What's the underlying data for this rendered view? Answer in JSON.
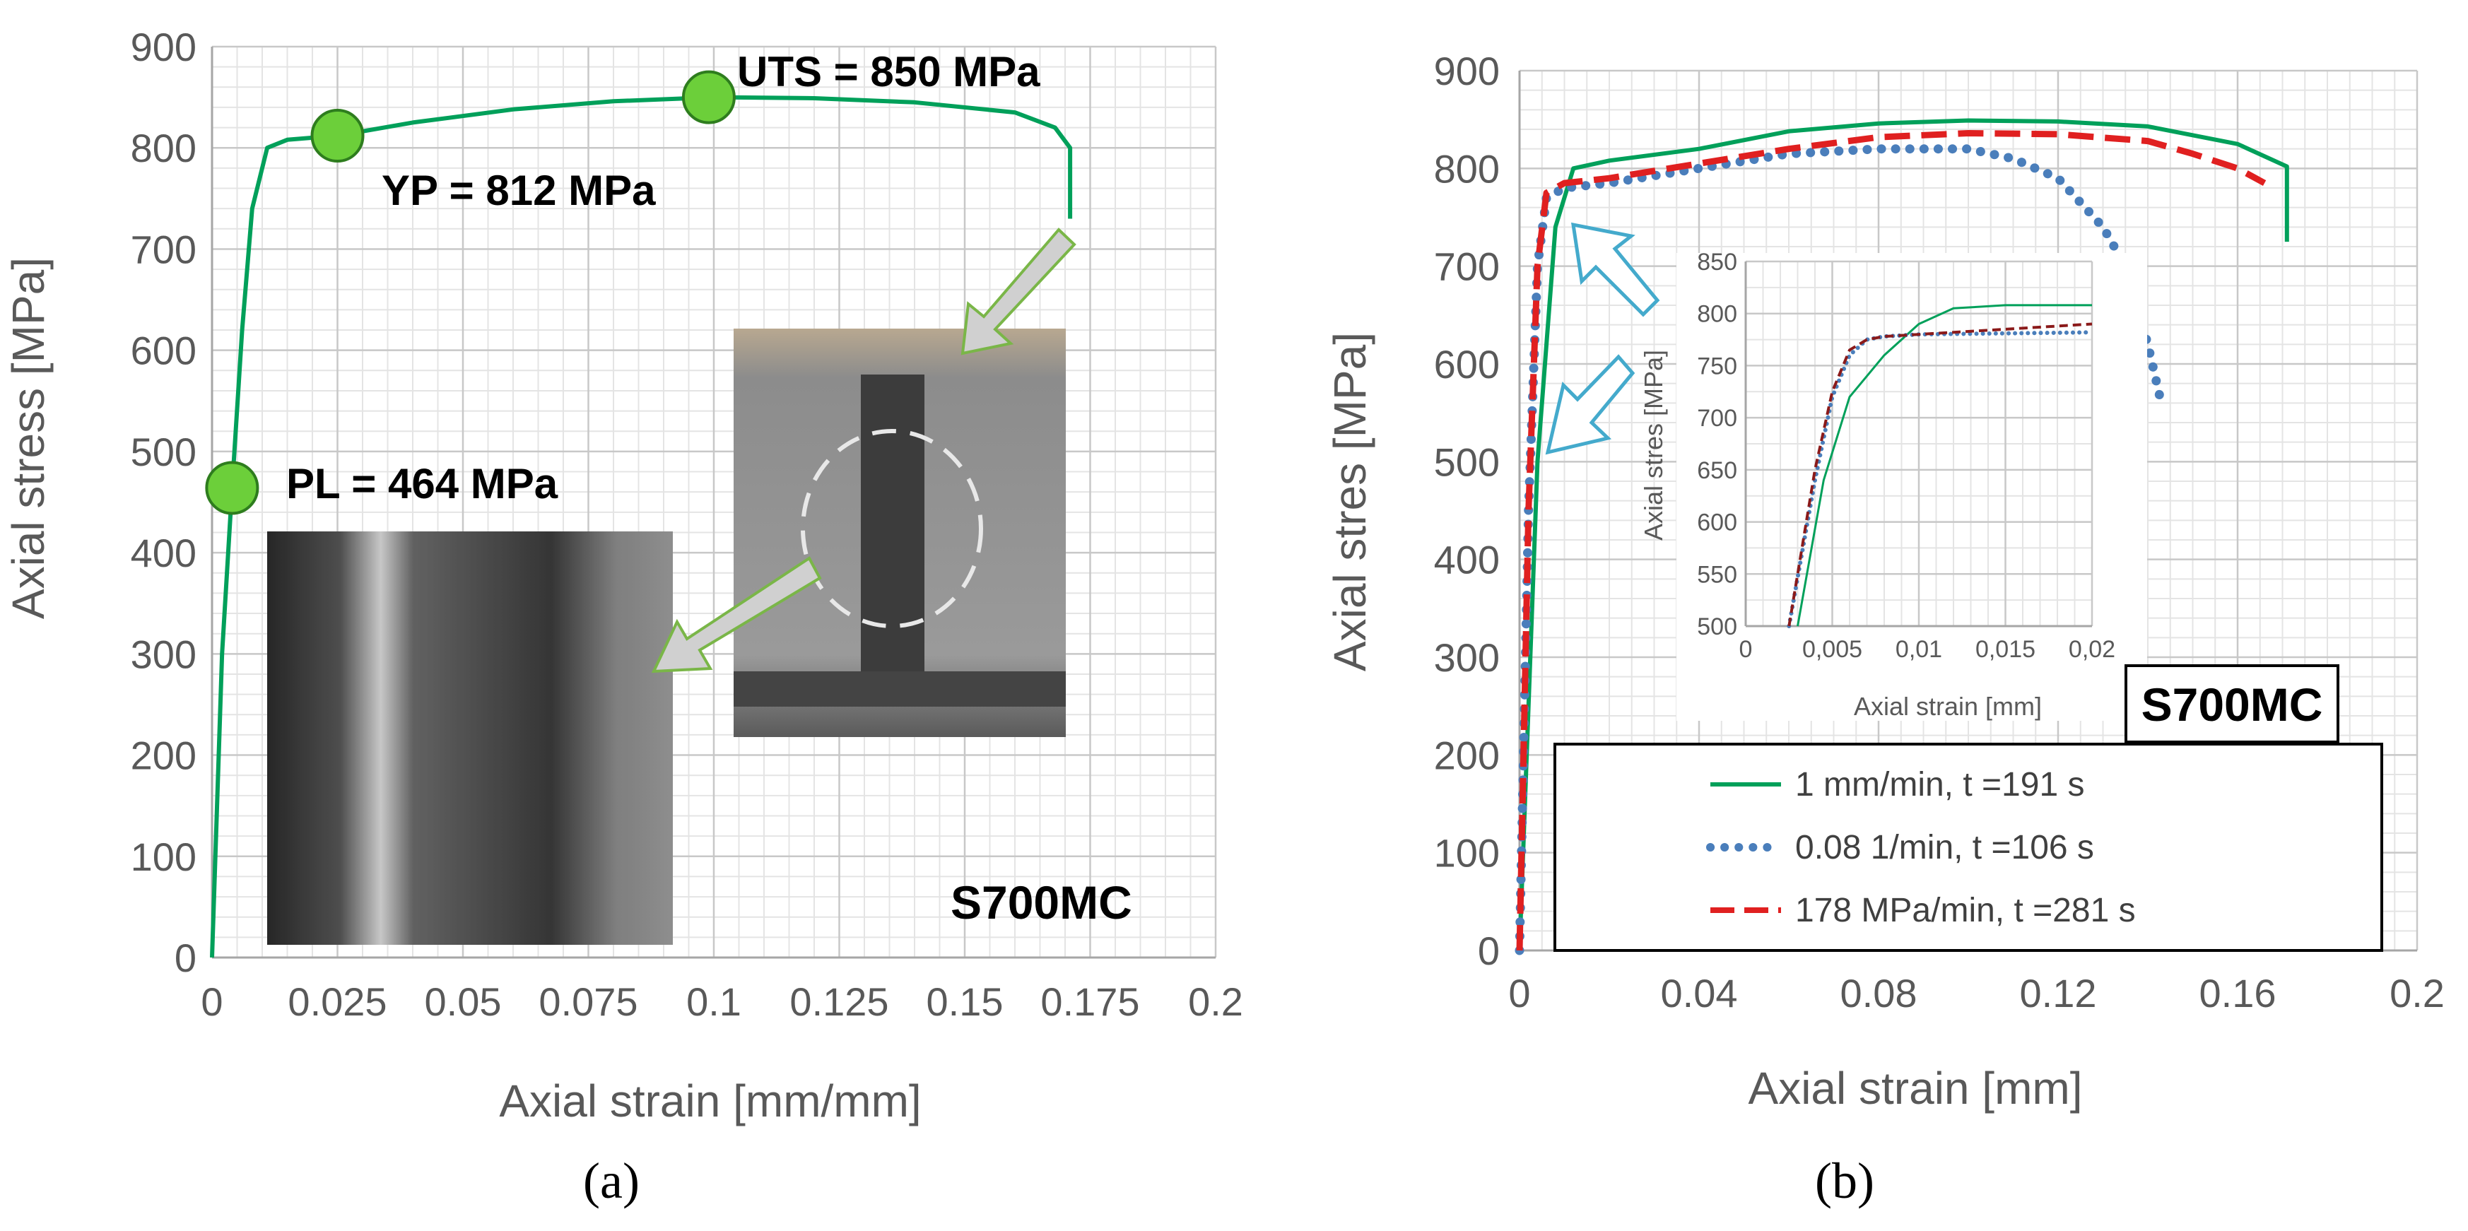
{
  "chart_data": [
    {
      "type": "line",
      "panel_label": "(a)",
      "xlabel": "Axial strain [mm/mm]",
      "ylabel": "Axial stress [MPa]",
      "xlim": [
        0,
        0.2
      ],
      "ylim": [
        0,
        900
      ],
      "x_ticks": [
        "0",
        "0.025",
        "0.05",
        "0.075",
        "0.1",
        "0.125",
        "0.15",
        "0.175",
        "0.2"
      ],
      "y_ticks": [
        "0",
        "100",
        "200",
        "300",
        "400",
        "500",
        "600",
        "700",
        "800",
        "900"
      ],
      "grid": true,
      "material_label": "S700MC",
      "series": [
        {
          "color": "#00a05a",
          "style": "solid",
          "x": [
            0,
            0.002,
            0.004,
            0.006,
            0.008,
            0.011,
            0.015,
            0.02,
            0.025,
            0.04,
            0.06,
            0.08,
            0.1,
            0.12,
            0.14,
            0.16,
            0.168,
            0.171,
            0.171
          ],
          "y": [
            0,
            300,
            464,
            620,
            740,
            800,
            808,
            810,
            812,
            825,
            838,
            846,
            850,
            849,
            845,
            835,
            820,
            800,
            730
          ]
        }
      ],
      "points": [
        {
          "label": "PL = 464 MPa",
          "x": 0.004,
          "y": 464
        },
        {
          "label": "YP = 812 MPa",
          "x": 0.025,
          "y": 812
        },
        {
          "label": "UTS = 850 MPa",
          "x": 0.099,
          "y": 850
        }
      ]
    },
    {
      "type": "line",
      "panel_label": "(b)",
      "xlabel": "Axial strain [mm]",
      "ylabel": "Axial stres [MPa]",
      "xlim": [
        0,
        0.2
      ],
      "ylim": [
        0,
        900
      ],
      "x_ticks": [
        "0",
        "0.04",
        "0.08",
        "0.12",
        "0.16",
        "0.2"
      ],
      "y_ticks": [
        "0",
        "100",
        "200",
        "300",
        "400",
        "500",
        "600",
        "700",
        "800",
        "900"
      ],
      "grid": true,
      "material_label": "S700MC",
      "legend_position": "bottom",
      "series": [
        {
          "name": "1 mm/min, t =191 s",
          "color": "#00a05a",
          "style": "solid",
          "x": [
            0,
            0.004,
            0.008,
            0.012,
            0.02,
            0.04,
            0.06,
            0.08,
            0.1,
            0.12,
            0.14,
            0.16,
            0.171,
            0.171
          ],
          "y": [
            0,
            500,
            740,
            800,
            808,
            820,
            838,
            846,
            849,
            848,
            843,
            825,
            802,
            725
          ]
        },
        {
          "name": "0.08 1/min, t =106 s",
          "color": "#4a7ebb",
          "style": "dotted",
          "x": [
            0,
            0.002,
            0.004,
            0.006,
            0.01,
            0.02,
            0.04,
            0.06,
            0.08,
            0.1,
            0.11,
            0.12,
            0.13,
            0.135,
            0.14,
            0.143
          ],
          "y": [
            0,
            450,
            700,
            770,
            780,
            785,
            800,
            815,
            820,
            820,
            810,
            790,
            740,
            700,
            620,
            560
          ]
        },
        {
          "name": "178 MPa/min, t =281 s",
          "color": "#e02020",
          "style": "dashed",
          "x": [
            0,
            0.002,
            0.004,
            0.006,
            0.01,
            0.02,
            0.04,
            0.06,
            0.08,
            0.1,
            0.12,
            0.14,
            0.15,
            0.16,
            0.166
          ],
          "y": [
            0,
            450,
            700,
            775,
            785,
            790,
            805,
            820,
            832,
            836,
            835,
            828,
            815,
            800,
            785
          ]
        }
      ],
      "inset": {
        "xlabel": "Axial strain [mm]",
        "ylabel": "Axial stres [MPa]",
        "xlim": [
          0,
          0.02
        ],
        "ylim": [
          500,
          850
        ],
        "x_ticks": [
          "0",
          "0,005",
          "0,01",
          "0,015",
          "0,02"
        ],
        "y_ticks": [
          "500",
          "550",
          "600",
          "650",
          "700",
          "750",
          "800",
          "850"
        ],
        "series": [
          {
            "color": "#00a05a",
            "style": "solid",
            "x": [
              0.003,
              0.0045,
              0.006,
              0.008,
              0.01,
              0.012,
              0.015,
              0.02
            ],
            "y": [
              500,
              640,
              720,
              760,
              790,
              805,
              808,
              808
            ]
          },
          {
            "color": "#4a7ebb",
            "style": "dotted",
            "x": [
              0.0025,
              0.004,
              0.005,
              0.006,
              0.007,
              0.008,
              0.01,
              0.02
            ],
            "y": [
              500,
              640,
              720,
              760,
              775,
              778,
              780,
              782
            ]
          },
          {
            "color": "#8b1a1a",
            "style": "dashed",
            "x": [
              0.0025,
              0.004,
              0.005,
              0.006,
              0.007,
              0.008,
              0.01,
              0.02
            ],
            "y": [
              500,
              650,
              725,
              765,
              775,
              778,
              780,
              790
            ]
          }
        ]
      }
    }
  ]
}
